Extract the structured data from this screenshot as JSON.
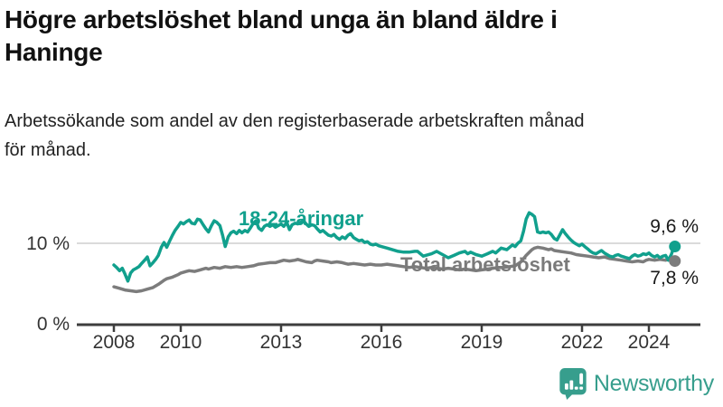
{
  "chart_data": {
    "type": "line",
    "title": "Högre arbetslöshet bland unga än bland äldre i Haninge",
    "subtitle": "Arbetssökande som andel av den registerbaserade arbetskraften månad för månad.",
    "xlabel": "",
    "ylabel": "",
    "xlim": [
      2007.9,
      2025.2
    ],
    "ylim": [
      0,
      15
    ],
    "grid": "single horizontal gridline at 10 %",
    "legend_position": "labels drawn on lines",
    "y_ticks": [
      {
        "value": 10,
        "label": "10 %"
      },
      {
        "value": 0,
        "label": "0 %"
      }
    ],
    "x_ticks": [
      {
        "value": 2008,
        "label": "2008"
      },
      {
        "value": 2010,
        "label": "2010"
      },
      {
        "value": 2013,
        "label": "2013"
      },
      {
        "value": 2016,
        "label": "2016"
      },
      {
        "value": 2019,
        "label": "2019"
      },
      {
        "value": 2022,
        "label": "2022"
      },
      {
        "value": 2024,
        "label": "2024"
      }
    ],
    "series": [
      {
        "name": "Total arbetslöshet",
        "color": "#7c7c7c",
        "end_label": "7,8 %",
        "end_value": 7.8,
        "points": [
          [
            2008.0,
            4.6
          ],
          [
            2008.17,
            4.4
          ],
          [
            2008.33,
            4.2
          ],
          [
            2008.5,
            4.1
          ],
          [
            2008.67,
            4.0
          ],
          [
            2008.83,
            4.1
          ],
          [
            2009.0,
            4.3
          ],
          [
            2009.17,
            4.5
          ],
          [
            2009.33,
            4.9
          ],
          [
            2009.5,
            5.4
          ],
          [
            2009.58,
            5.6
          ],
          [
            2009.75,
            5.8
          ],
          [
            2009.92,
            6.1
          ],
          [
            2010.0,
            6.3
          ],
          [
            2010.17,
            6.5
          ],
          [
            2010.25,
            6.6
          ],
          [
            2010.42,
            6.5
          ],
          [
            2010.58,
            6.7
          ],
          [
            2010.75,
            6.9
          ],
          [
            2010.83,
            6.8
          ],
          [
            2011.0,
            7.0
          ],
          [
            2011.17,
            6.9
          ],
          [
            2011.33,
            7.1
          ],
          [
            2011.5,
            7.0
          ],
          [
            2011.67,
            7.1
          ],
          [
            2011.83,
            7.0
          ],
          [
            2012.0,
            7.1
          ],
          [
            2012.17,
            7.2
          ],
          [
            2012.33,
            7.4
          ],
          [
            2012.5,
            7.5
          ],
          [
            2012.67,
            7.6
          ],
          [
            2012.83,
            7.6
          ],
          [
            2013.0,
            7.8
          ],
          [
            2013.08,
            7.9
          ],
          [
            2013.25,
            7.8
          ],
          [
            2013.42,
            7.9
          ],
          [
            2013.5,
            8.0
          ],
          [
            2013.58,
            7.9
          ],
          [
            2013.75,
            7.7
          ],
          [
            2013.92,
            7.6
          ],
          [
            2014.0,
            7.8
          ],
          [
            2014.08,
            7.9
          ],
          [
            2014.25,
            7.8
          ],
          [
            2014.42,
            7.7
          ],
          [
            2014.5,
            7.6
          ],
          [
            2014.67,
            7.7
          ],
          [
            2014.83,
            7.6
          ],
          [
            2015.0,
            7.4
          ],
          [
            2015.17,
            7.5
          ],
          [
            2015.33,
            7.4
          ],
          [
            2015.5,
            7.3
          ],
          [
            2015.67,
            7.4
          ],
          [
            2015.83,
            7.3
          ],
          [
            2016.0,
            7.3
          ],
          [
            2016.17,
            7.4
          ],
          [
            2016.33,
            7.3
          ],
          [
            2016.5,
            7.2
          ],
          [
            2016.67,
            7.1
          ],
          [
            2016.83,
            7.0
          ],
          [
            2017.0,
            7.1
          ],
          [
            2017.17,
            7.0
          ],
          [
            2017.33,
            6.9
          ],
          [
            2017.5,
            7.0
          ],
          [
            2017.67,
            6.9
          ],
          [
            2017.83,
            6.8
          ],
          [
            2018.0,
            6.9
          ],
          [
            2018.17,
            6.8
          ],
          [
            2018.33,
            6.7
          ],
          [
            2018.5,
            6.8
          ],
          [
            2018.67,
            6.7
          ],
          [
            2018.83,
            6.6
          ],
          [
            2019.0,
            6.7
          ],
          [
            2019.17,
            6.8
          ],
          [
            2019.33,
            6.9
          ],
          [
            2019.5,
            7.0
          ],
          [
            2019.67,
            7.0
          ],
          [
            2019.83,
            7.1
          ],
          [
            2020.0,
            7.2
          ],
          [
            2020.17,
            7.7
          ],
          [
            2020.33,
            8.5
          ],
          [
            2020.5,
            9.2
          ],
          [
            2020.58,
            9.4
          ],
          [
            2020.67,
            9.5
          ],
          [
            2020.83,
            9.4
          ],
          [
            2021.0,
            9.2
          ],
          [
            2021.08,
            9.3
          ],
          [
            2021.17,
            9.1
          ],
          [
            2021.33,
            9.0
          ],
          [
            2021.5,
            8.9
          ],
          [
            2021.67,
            8.8
          ],
          [
            2021.83,
            8.6
          ],
          [
            2022.0,
            8.5
          ],
          [
            2022.17,
            8.4
          ],
          [
            2022.33,
            8.3
          ],
          [
            2022.5,
            8.2
          ],
          [
            2022.67,
            8.3
          ],
          [
            2022.83,
            8.1
          ],
          [
            2023.0,
            8.0
          ],
          [
            2023.17,
            7.9
          ],
          [
            2023.33,
            7.8
          ],
          [
            2023.5,
            7.7
          ],
          [
            2023.67,
            7.8
          ],
          [
            2023.83,
            7.7
          ],
          [
            2023.92,
            7.9
          ],
          [
            2024.0,
            8.0
          ],
          [
            2024.17,
            7.9
          ],
          [
            2024.33,
            8.0
          ],
          [
            2024.5,
            7.9
          ],
          [
            2024.58,
            8.0
          ],
          [
            2024.67,
            7.9
          ],
          [
            2024.75,
            7.8
          ]
        ]
      },
      {
        "name": "18-24-åringar",
        "color": "#11a08d",
        "end_label": "9,6 %",
        "end_value": 9.6,
        "points": [
          [
            2008.0,
            7.3
          ],
          [
            2008.08,
            7.0
          ],
          [
            2008.17,
            6.6
          ],
          [
            2008.25,
            6.9
          ],
          [
            2008.33,
            6.2
          ],
          [
            2008.42,
            5.3
          ],
          [
            2008.5,
            6.3
          ],
          [
            2008.58,
            6.7
          ],
          [
            2008.67,
            6.9
          ],
          [
            2008.75,
            7.1
          ],
          [
            2008.83,
            7.5
          ],
          [
            2008.92,
            7.9
          ],
          [
            2009.0,
            8.3
          ],
          [
            2009.08,
            7.2
          ],
          [
            2009.17,
            7.6
          ],
          [
            2009.25,
            8.0
          ],
          [
            2009.33,
            8.5
          ],
          [
            2009.42,
            9.5
          ],
          [
            2009.5,
            10.1
          ],
          [
            2009.58,
            9.5
          ],
          [
            2009.67,
            10.3
          ],
          [
            2009.75,
            11.0
          ],
          [
            2009.83,
            11.6
          ],
          [
            2009.92,
            12.1
          ],
          [
            2010.0,
            12.6
          ],
          [
            2010.08,
            12.4
          ],
          [
            2010.17,
            12.7
          ],
          [
            2010.25,
            12.9
          ],
          [
            2010.33,
            12.5
          ],
          [
            2010.42,
            12.4
          ],
          [
            2010.5,
            13.0
          ],
          [
            2010.58,
            12.9
          ],
          [
            2010.67,
            12.3
          ],
          [
            2010.75,
            11.8
          ],
          [
            2010.83,
            11.4
          ],
          [
            2010.92,
            12.2
          ],
          [
            2011.0,
            12.8
          ],
          [
            2011.08,
            12.6
          ],
          [
            2011.17,
            12.2
          ],
          [
            2011.25,
            11.0
          ],
          [
            2011.33,
            9.6
          ],
          [
            2011.42,
            10.8
          ],
          [
            2011.5,
            11.3
          ],
          [
            2011.58,
            11.5
          ],
          [
            2011.67,
            11.2
          ],
          [
            2011.75,
            11.6
          ],
          [
            2011.83,
            11.3
          ],
          [
            2011.92,
            11.6
          ],
          [
            2012.0,
            11.4
          ],
          [
            2012.08,
            11.9
          ],
          [
            2012.17,
            12.5
          ],
          [
            2012.25,
            12.8
          ],
          [
            2012.33,
            11.9
          ],
          [
            2012.42,
            11.6
          ],
          [
            2012.5,
            12.1
          ],
          [
            2012.58,
            12.3
          ],
          [
            2012.67,
            12.1
          ],
          [
            2012.75,
            12.3
          ],
          [
            2012.83,
            12.0
          ],
          [
            2012.92,
            12.2
          ],
          [
            2013.0,
            12.4
          ],
          [
            2013.08,
            12.1
          ],
          [
            2013.17,
            12.6
          ],
          [
            2013.25,
            11.7
          ],
          [
            2013.33,
            12.3
          ],
          [
            2013.42,
            12.5
          ],
          [
            2013.5,
            12.4
          ],
          [
            2013.58,
            12.6
          ],
          [
            2013.67,
            12.8
          ],
          [
            2013.75,
            12.4
          ],
          [
            2013.83,
            12.1
          ],
          [
            2013.92,
            12.3
          ],
          [
            2014.0,
            12.2
          ],
          [
            2014.08,
            11.8
          ],
          [
            2014.17,
            11.4
          ],
          [
            2014.25,
            11.6
          ],
          [
            2014.33,
            11.3
          ],
          [
            2014.42,
            11.0
          ],
          [
            2014.5,
            10.9
          ],
          [
            2014.58,
            11.1
          ],
          [
            2014.67,
            10.7
          ],
          [
            2014.75,
            10.5
          ],
          [
            2014.83,
            10.8
          ],
          [
            2014.92,
            10.6
          ],
          [
            2015.0,
            11.0
          ],
          [
            2015.08,
            11.2
          ],
          [
            2015.17,
            10.7
          ],
          [
            2015.25,
            10.5
          ],
          [
            2015.33,
            10.3
          ],
          [
            2015.42,
            10.4
          ],
          [
            2015.5,
            10.1
          ],
          [
            2015.58,
            10.2
          ],
          [
            2015.67,
            9.9
          ],
          [
            2015.75,
            9.8
          ],
          [
            2015.83,
            9.9
          ],
          [
            2015.92,
            9.7
          ],
          [
            2016.0,
            9.6
          ],
          [
            2016.17,
            9.4
          ],
          [
            2016.33,
            9.2
          ],
          [
            2016.5,
            9.0
          ],
          [
            2016.67,
            8.9
          ],
          [
            2016.83,
            8.9
          ],
          [
            2017.0,
            9.0
          ],
          [
            2017.08,
            9.0
          ],
          [
            2017.25,
            8.4
          ],
          [
            2017.5,
            8.7
          ],
          [
            2017.65,
            9.0
          ],
          [
            2017.83,
            8.6
          ],
          [
            2018.0,
            8.2
          ],
          [
            2018.17,
            8.5
          ],
          [
            2018.33,
            8.8
          ],
          [
            2018.5,
            9.0
          ],
          [
            2018.58,
            8.7
          ],
          [
            2018.67,
            8.9
          ],
          [
            2018.83,
            8.6
          ],
          [
            2019.0,
            8.4
          ],
          [
            2019.17,
            8.7
          ],
          [
            2019.33,
            9.0
          ],
          [
            2019.42,
            8.8
          ],
          [
            2019.58,
            9.4
          ],
          [
            2019.75,
            9.2
          ],
          [
            2019.92,
            9.8
          ],
          [
            2020.0,
            9.6
          ],
          [
            2020.08,
            10.0
          ],
          [
            2020.17,
            10.3
          ],
          [
            2020.25,
            11.5
          ],
          [
            2020.33,
            13.0
          ],
          [
            2020.42,
            13.8
          ],
          [
            2020.5,
            13.6
          ],
          [
            2020.58,
            13.3
          ],
          [
            2020.67,
            11.4
          ],
          [
            2020.75,
            11.3
          ],
          [
            2020.83,
            11.4
          ],
          [
            2020.92,
            11.3
          ],
          [
            2021.0,
            11.4
          ],
          [
            2021.08,
            11.1
          ],
          [
            2021.17,
            10.6
          ],
          [
            2021.25,
            10.4
          ],
          [
            2021.33,
            11.0
          ],
          [
            2021.42,
            11.7
          ],
          [
            2021.5,
            11.2
          ],
          [
            2021.58,
            10.8
          ],
          [
            2021.67,
            10.4
          ],
          [
            2021.75,
            10.1
          ],
          [
            2021.83,
            9.9
          ],
          [
            2021.92,
            9.7
          ],
          [
            2022.0,
            9.9
          ],
          [
            2022.08,
            9.6
          ],
          [
            2022.17,
            9.3
          ],
          [
            2022.25,
            9.0
          ],
          [
            2022.33,
            8.8
          ],
          [
            2022.42,
            8.7
          ],
          [
            2022.5,
            8.9
          ],
          [
            2022.58,
            9.1
          ],
          [
            2022.67,
            8.8
          ],
          [
            2022.75,
            8.6
          ],
          [
            2022.83,
            8.4
          ],
          [
            2022.92,
            8.3
          ],
          [
            2023.0,
            8.5
          ],
          [
            2023.08,
            8.6
          ],
          [
            2023.17,
            8.4
          ],
          [
            2023.25,
            8.3
          ],
          [
            2023.33,
            8.2
          ],
          [
            2023.42,
            8.1
          ],
          [
            2023.5,
            8.4
          ],
          [
            2023.58,
            8.6
          ],
          [
            2023.67,
            8.4
          ],
          [
            2023.75,
            8.5
          ],
          [
            2023.83,
            8.7
          ],
          [
            2023.92,
            8.6
          ],
          [
            2024.0,
            8.8
          ],
          [
            2024.08,
            8.5
          ],
          [
            2024.17,
            8.3
          ],
          [
            2024.25,
            8.5
          ],
          [
            2024.33,
            8.2
          ],
          [
            2024.42,
            8.4
          ],
          [
            2024.5,
            8.5
          ],
          [
            2024.58,
            7.9
          ],
          [
            2024.67,
            8.6
          ],
          [
            2024.75,
            9.6
          ]
        ]
      }
    ]
  },
  "colors": {
    "accent_teal": "#11a08d",
    "series_gray": "#7c7c7c",
    "axis": "#3d3d3d",
    "gridline": "#cfcfcf",
    "value_label": "#1a1a1a",
    "tick_label": "#333333",
    "brand_teal": "#379e8d"
  },
  "footer": {
    "brand": "Newsworthy",
    "icon": "bar-chart-speech-bubble-icon"
  }
}
